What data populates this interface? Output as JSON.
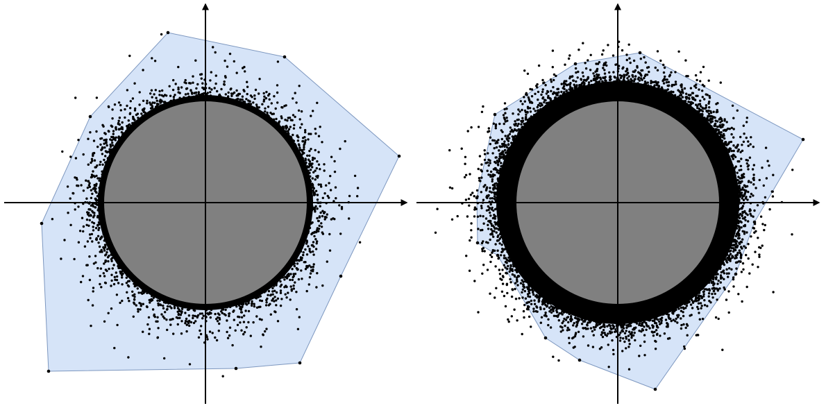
{
  "colors": {
    "background": "#ffffff",
    "hull_fill": "#d6e4f8",
    "hull_stroke": "#7d97bf",
    "disk_fill": "#808080",
    "ring_fill": "#000000",
    "points": "#000000",
    "axes": "#000000"
  },
  "panels": [
    {
      "id": "left",
      "point_density": "sparse",
      "ring_width_relative": 0.05,
      "spread_relative": 0.1
    },
    {
      "id": "right",
      "point_density": "dense",
      "ring_width_relative": 0.09,
      "spread_relative": 0.08
    }
  ]
}
